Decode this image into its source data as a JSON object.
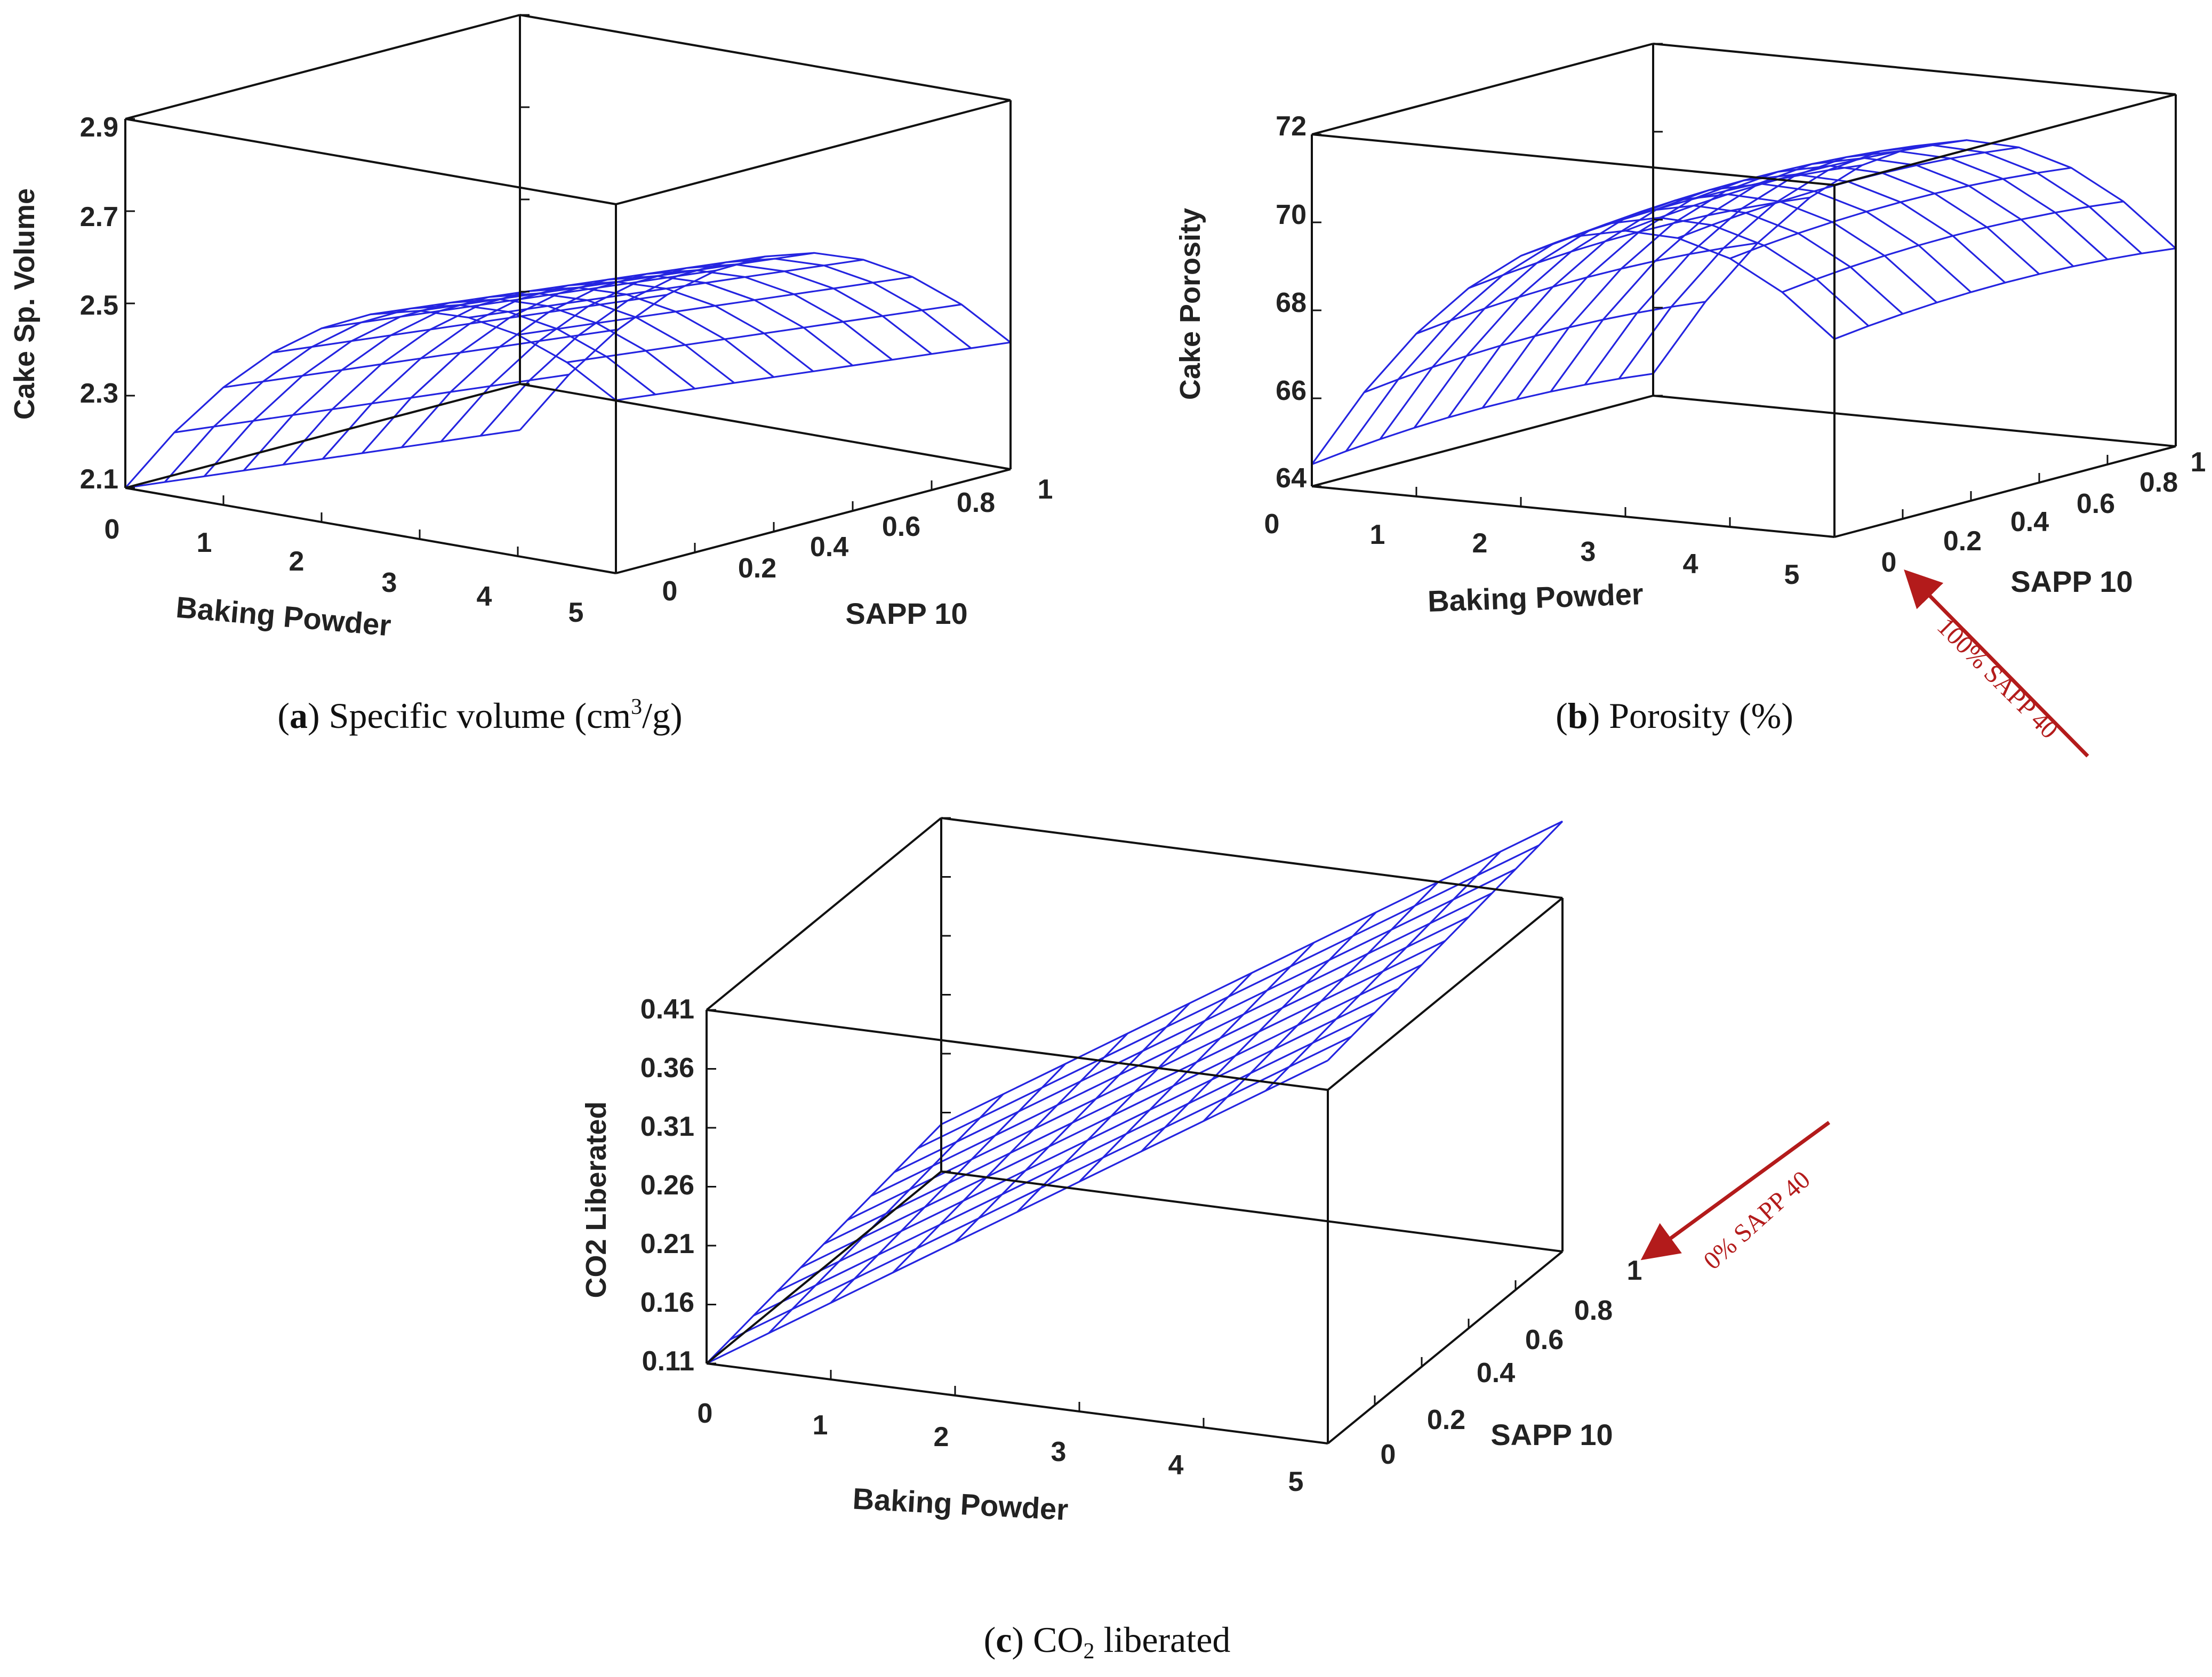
{
  "colors": {
    "mesh": "#2424e0",
    "frame": "#111111",
    "annotation": "#b31b1b",
    "text": "#222222"
  },
  "chart_data": [
    {
      "type": "surface",
      "id": "a",
      "caption": {
        "label": "a",
        "text": " Specific volume (cm",
        "sup": "3",
        "tail": "/g)"
      },
      "xlabel": "Baking Powder",
      "ylabel": "SAPP 10",
      "zlabel": "Cake Sp. Volume",
      "x_range": [
        0,
        5
      ],
      "y_range": [
        0,
        1
      ],
      "z_range": [
        2.1,
        2.9
      ],
      "x_ticks": [
        "0",
        "1",
        "2",
        "3",
        "4",
        "5"
      ],
      "y_ticks": [
        "0",
        "0.2",
        "0.4",
        "0.6",
        "0.8",
        "1"
      ],
      "z_ticks": [
        "2.1",
        "2.3",
        "2.5",
        "2.7",
        "2.9"
      ],
      "grid_x": [
        0,
        0.5,
        1,
        1.5,
        2,
        2.5,
        3,
        3.5,
        4,
        4.5,
        5
      ],
      "grid_y": [
        0,
        0.1,
        0.2,
        0.3,
        0.4,
        0.5,
        0.6,
        0.7,
        0.8,
        0.9,
        1
      ],
      "surface_model": {
        "c": 2.1,
        "x": 0.3,
        "xx": -0.045,
        "y": -0.1,
        "yy": 0.0,
        "xy": 0.0,
        "note": "approximate fit read from figure"
      }
    },
    {
      "type": "surface",
      "id": "b",
      "caption": {
        "label": "b",
        "text": " Porosity (%)"
      },
      "xlabel": "Baking Powder",
      "ylabel": "SAPP 10",
      "zlabel": "Cake Porosity",
      "x_range": [
        0,
        5
      ],
      "y_range": [
        0,
        1
      ],
      "z_range": [
        64,
        72
      ],
      "x_ticks": [
        "0",
        "1",
        "2",
        "3",
        "4",
        "5"
      ],
      "y_ticks": [
        "0",
        "0.2",
        "0.4",
        "0.6",
        "0.8",
        "1"
      ],
      "z_ticks": [
        "64",
        "66",
        "68",
        "70",
        "72"
      ],
      "grid_x": [
        0,
        0.5,
        1,
        1.5,
        2,
        2.5,
        3,
        3.5,
        4,
        4.5,
        5
      ],
      "grid_y": [
        0,
        0.1,
        0.2,
        0.3,
        0.4,
        0.5,
        0.6,
        0.7,
        0.8,
        0.9,
        1
      ],
      "surface_model": {
        "c": 64.5,
        "x": 3.8,
        "xx": -0.6,
        "y": 1.0,
        "yy": -1.0,
        "xy": 0.0,
        "note": "approximate fit read from figure"
      },
      "annotation": "100% SAPP 40"
    },
    {
      "type": "surface",
      "id": "c",
      "caption": {
        "label": "c",
        "text": " CO",
        "sub": "2",
        "tail": " liberated"
      },
      "xlabel": "Baking Powder",
      "ylabel": "SAPP 10",
      "zlabel": "CO2 Liberated",
      "x_range": [
        0,
        5
      ],
      "y_range": [
        0,
        1
      ],
      "z_range": [
        0.11,
        0.41
      ],
      "x_ticks": [
        "0",
        "1",
        "2",
        "3",
        "4",
        "5"
      ],
      "y_ticks": [
        "0",
        "0.2",
        "0.4",
        "0.6",
        "0.8",
        "1"
      ],
      "z_ticks": [
        "0.11",
        "0.16",
        "0.21",
        "0.26",
        "0.31",
        "0.36",
        "0.41"
      ],
      "grid_x": [
        0,
        0.5,
        1,
        1.5,
        2,
        2.5,
        3,
        3.5,
        4,
        4.5,
        5
      ],
      "grid_y": [
        0,
        0.1,
        0.2,
        0.3,
        0.4,
        0.5,
        0.6,
        0.7,
        0.8,
        0.9,
        1
      ],
      "surface_model": {
        "c": 0.11,
        "x": 0.065,
        "xx": 0.0,
        "y": 0.04,
        "yy": 0.0,
        "xy": 0.0,
        "note": "approximate fit read from figure"
      },
      "annotation": "0% SAPP 40"
    }
  ]
}
